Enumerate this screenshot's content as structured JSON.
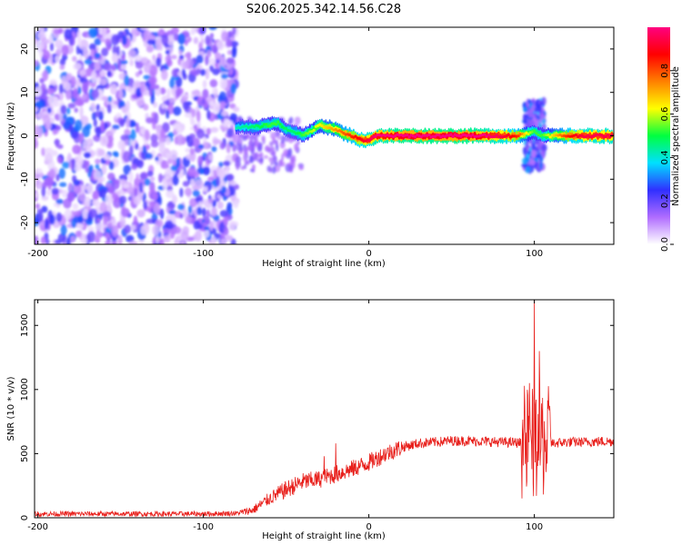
{
  "title": "S206.2025.342.14.56.C28",
  "colorbar": {
    "label": "Normalized spectral amplitude",
    "range": [
      0,
      1
    ],
    "ticks": [
      0.0,
      0.2,
      0.4,
      0.6,
      0.8
    ],
    "tick_labels": [
      "0.0",
      "0.2",
      "0.4",
      "0.6",
      "0.8"
    ],
    "colors": [
      "#ffffff",
      "#b06cff",
      "#3030ff",
      "#00e0ff",
      "#00ff40",
      "#ffff00",
      "#ff8000",
      "#ff0000",
      "#ff0080"
    ]
  },
  "chart_data": [
    {
      "type": "heatmap",
      "xlabel": "Height of straight line (km)",
      "ylabel": "Frequency (Hz)",
      "xlim": [
        -202,
        148
      ],
      "ylim": [
        -25,
        25
      ],
      "xticks": [
        -200,
        -100,
        0,
        100
      ],
      "xtick_labels": [
        "-200",
        "-100",
        "0",
        "100"
      ],
      "yticks": [
        -20,
        -10,
        0,
        10,
        20
      ],
      "ytick_labels": [
        "-20",
        "-10",
        "0",
        "10",
        "20"
      ],
      "noise_region_x": [
        -202,
        -80
      ],
      "ridge": {
        "x": [
          -80,
          -70,
          -60,
          -55,
          -50,
          -45,
          -40,
          -35,
          -30,
          -25,
          -20,
          -15,
          -10,
          -5,
          0,
          5,
          10,
          20,
          30,
          40,
          50,
          60,
          70,
          80,
          90,
          95,
          100,
          105,
          110,
          120,
          130,
          140,
          148
        ],
        "freq_hz": [
          2,
          2,
          2.5,
          3,
          1.5,
          1,
          0,
          1,
          2.5,
          2,
          1.5,
          0.5,
          0,
          -1,
          -1,
          0,
          0,
          0,
          0,
          0,
          0,
          0,
          0,
          0,
          0,
          0.5,
          1,
          0,
          0,
          0,
          0,
          0,
          0
        ],
        "amplitude": [
          0.4,
          0.45,
          0.5,
          0.5,
          0.45,
          0.45,
          0.5,
          0.55,
          0.6,
          0.65,
          0.7,
          0.75,
          0.8,
          0.85,
          0.9,
          0.95,
          0.95,
          1.0,
          1.0,
          1.0,
          1.0,
          1.0,
          0.95,
          0.9,
          0.8,
          0.6,
          0.5,
          0.5,
          0.6,
          0.8,
          0.9,
          0.9,
          0.9
        ]
      },
      "burst": {
        "x": 100,
        "freq_range_hz": [
          -8,
          8
        ]
      }
    },
    {
      "type": "line",
      "xlabel": "Height of straight line (km)",
      "ylabel": "SNR (10 * v/v)",
      "xlim": [
        -202,
        148
      ],
      "ylim": [
        0,
        1700
      ],
      "xticks": [
        -200,
        -100,
        0,
        100
      ],
      "xtick_labels": [
        "-200",
        "-100",
        "0",
        "100"
      ],
      "yticks": [
        0,
        500,
        1000,
        1500
      ],
      "ytick_labels": [
        "0",
        "500",
        "1000",
        "1500"
      ],
      "color": "#e8201c",
      "series": [
        {
          "name": "SNR",
          "x": [
            -202,
            -100,
            -80,
            -70,
            -60,
            -50,
            -40,
            -30,
            -25,
            -20,
            -10,
            0,
            10,
            20,
            30,
            40,
            50,
            60,
            70,
            80,
            90,
            95,
            100,
            105,
            110,
            120,
            130,
            140,
            148
          ],
          "values": [
            30,
            30,
            35,
            60,
            150,
            220,
            280,
            300,
            320,
            340,
            380,
            430,
            500,
            550,
            580,
            590,
            600,
            600,
            595,
            590,
            585,
            585,
            580,
            600,
            580,
            590,
            590,
            595,
            595
          ]
        }
      ],
      "spikes": [
        {
          "x": -27,
          "value": 480
        },
        {
          "x": -20,
          "value": 580
        },
        {
          "x": 100,
          "value": 1700
        },
        {
          "x": 103,
          "value": 1300
        },
        {
          "x": 97,
          "value": 1050
        }
      ]
    }
  ]
}
